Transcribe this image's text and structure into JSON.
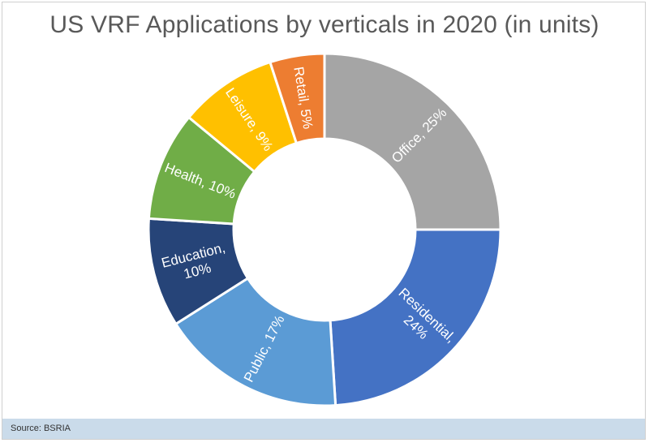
{
  "chart_data": {
    "type": "pie",
    "donut": true,
    "title": "US VRF Applications by verticals in 2020 (in units)",
    "slices": [
      {
        "name": "Office",
        "value": 25,
        "label_lines": [
          "Office, 25%"
        ],
        "color": "#a5a5a5"
      },
      {
        "name": "Residential",
        "value": 24,
        "label_lines": [
          "Residential,",
          "24%"
        ],
        "color": "#4472c4"
      },
      {
        "name": "Public",
        "value": 17,
        "label_lines": [
          "Public, 17%"
        ],
        "color": "#5b9bd5"
      },
      {
        "name": "Education",
        "value": 10,
        "label_lines": [
          "Education,",
          "10%"
        ],
        "color": "#264478"
      },
      {
        "name": "Health",
        "value": 10,
        "label_lines": [
          "Health, 10%"
        ],
        "color": "#70ad47"
      },
      {
        "name": "Leisure",
        "value": 9,
        "label_lines": [
          "Leisure, 9%"
        ],
        "color": "#ffc000"
      },
      {
        "name": "Retail",
        "value": 5,
        "label_lines": [
          "Retail, 5%"
        ],
        "color": "#ed7d31"
      }
    ]
  },
  "footer": {
    "source": "Source: BSRIA"
  }
}
